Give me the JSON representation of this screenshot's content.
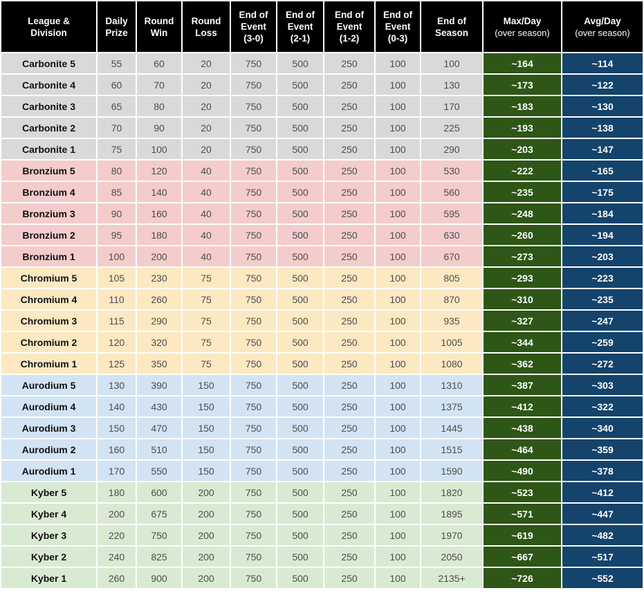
{
  "colors": {
    "header_bg": "#000000",
    "header_text": "#ffffff",
    "value_text": "#4d4d4d",
    "league_text": "#111111",
    "accent_text": "#ffffff",
    "max_day_bg": "#2e5616",
    "avg_day_bg": "#14436c",
    "grid": "#ffffff",
    "groups": {
      "Carbonite": "#d9d9d9",
      "Bronzium": "#f4cccc",
      "Chromium": "#fce9c2",
      "Aurodium": "#d2e3f3",
      "Kyber": "#d9ead3"
    }
  },
  "chart_data": {
    "type": "table",
    "columns": [
      {
        "label": "League & Division",
        "lines": [
          "League &",
          "Division"
        ]
      },
      {
        "label": "Daily Prize",
        "lines": [
          "Daily",
          "Prize"
        ]
      },
      {
        "label": "Round Win",
        "lines": [
          "Round",
          "Win"
        ]
      },
      {
        "label": "Round Loss",
        "lines": [
          "Round",
          "Loss"
        ]
      },
      {
        "label": "End of Event (3-0)",
        "lines": [
          "End of",
          "Event",
          "(3-0)"
        ]
      },
      {
        "label": "End of Event (2-1)",
        "lines": [
          "End of",
          "Event",
          "(2-1)"
        ]
      },
      {
        "label": "End of Event (1-2)",
        "lines": [
          "End of",
          "Event",
          "(1-2)"
        ]
      },
      {
        "label": "End of Event (0-3)",
        "lines": [
          "End of",
          "Event",
          "(0-3)"
        ]
      },
      {
        "label": "End of Season",
        "lines": [
          "End of",
          "Season"
        ]
      },
      {
        "label": "Max/Day (over season)",
        "lines": [
          "Max/Day"
        ],
        "sub": "(over season)"
      },
      {
        "label": "Avg/Day (over season)",
        "lines": [
          "Avg/Day"
        ],
        "sub": "(over season)"
      }
    ],
    "row_groups": [
      {
        "name": "Carbonite",
        "rows": [
          {
            "league": "Carbonite 5",
            "cells": [
              "55",
              "60",
              "20",
              "750",
              "500",
              "250",
              "100",
              "100"
            ],
            "max": "~164",
            "avg": "~114"
          },
          {
            "league": "Carbonite 4",
            "cells": [
              "60",
              "70",
              "20",
              "750",
              "500",
              "250",
              "100",
              "130"
            ],
            "max": "~173",
            "avg": "~122"
          },
          {
            "league": "Carbonite 3",
            "cells": [
              "65",
              "80",
              "20",
              "750",
              "500",
              "250",
              "100",
              "170"
            ],
            "max": "~183",
            "avg": "~130"
          },
          {
            "league": "Carbonite 2",
            "cells": [
              "70",
              "90",
              "20",
              "750",
              "500",
              "250",
              "100",
              "225"
            ],
            "max": "~193",
            "avg": "~138"
          },
          {
            "league": "Carbonite 1",
            "cells": [
              "75",
              "100",
              "20",
              "750",
              "500",
              "250",
              "100",
              "290"
            ],
            "max": "~203",
            "avg": "~147"
          }
        ]
      },
      {
        "name": "Bronzium",
        "rows": [
          {
            "league": "Bronzium 5",
            "cells": [
              "80",
              "120",
              "40",
              "750",
              "500",
              "250",
              "100",
              "530"
            ],
            "max": "~222",
            "avg": "~165"
          },
          {
            "league": "Bronzium 4",
            "cells": [
              "85",
              "140",
              "40",
              "750",
              "500",
              "250",
              "100",
              "560"
            ],
            "max": "~235",
            "avg": "~175"
          },
          {
            "league": "Bronzium 3",
            "cells": [
              "90",
              "160",
              "40",
              "750",
              "500",
              "250",
              "100",
              "595"
            ],
            "max": "~248",
            "avg": "~184"
          },
          {
            "league": "Bronzium 2",
            "cells": [
              "95",
              "180",
              "40",
              "750",
              "500",
              "250",
              "100",
              "630"
            ],
            "max": "~260",
            "avg": "~194"
          },
          {
            "league": "Bronzium 1",
            "cells": [
              "100",
              "200",
              "40",
              "750",
              "500",
              "250",
              "100",
              "670"
            ],
            "max": "~273",
            "avg": "~203"
          }
        ]
      },
      {
        "name": "Chromium",
        "rows": [
          {
            "league": "Chromium 5",
            "cells": [
              "105",
              "230",
              "75",
              "750",
              "500",
              "250",
              "100",
              "805"
            ],
            "max": "~293",
            "avg": "~223"
          },
          {
            "league": "Chromium 4",
            "cells": [
              "110",
              "260",
              "75",
              "750",
              "500",
              "250",
              "100",
              "870"
            ],
            "max": "~310",
            "avg": "~235"
          },
          {
            "league": "Chromium 3",
            "cells": [
              "115",
              "290",
              "75",
              "750",
              "500",
              "250",
              "100",
              "935"
            ],
            "max": "~327",
            "avg": "~247"
          },
          {
            "league": "Chromium 2",
            "cells": [
              "120",
              "320",
              "75",
              "750",
              "500",
              "250",
              "100",
              "1005"
            ],
            "max": "~344",
            "avg": "~259"
          },
          {
            "league": "Chromium 1",
            "cells": [
              "125",
              "350",
              "75",
              "750",
              "500",
              "250",
              "100",
              "1080"
            ],
            "max": "~362",
            "avg": "~272"
          }
        ]
      },
      {
        "name": "Aurodium",
        "rows": [
          {
            "league": "Aurodium 5",
            "cells": [
              "130",
              "390",
              "150",
              "750",
              "500",
              "250",
              "100",
              "1310"
            ],
            "max": "~387",
            "avg": "~303"
          },
          {
            "league": "Aurodium 4",
            "cells": [
              "140",
              "430",
              "150",
              "750",
              "500",
              "250",
              "100",
              "1375"
            ],
            "max": "~412",
            "avg": "~322"
          },
          {
            "league": "Aurodium 3",
            "cells": [
              "150",
              "470",
              "150",
              "750",
              "500",
              "250",
              "100",
              "1445"
            ],
            "max": "~438",
            "avg": "~340"
          },
          {
            "league": "Aurodium 2",
            "cells": [
              "160",
              "510",
              "150",
              "750",
              "500",
              "250",
              "100",
              "1515"
            ],
            "max": "~464",
            "avg": "~359"
          },
          {
            "league": "Aurodium 1",
            "cells": [
              "170",
              "550",
              "150",
              "750",
              "500",
              "250",
              "100",
              "1590"
            ],
            "max": "~490",
            "avg": "~378"
          }
        ]
      },
      {
        "name": "Kyber",
        "rows": [
          {
            "league": "Kyber 5",
            "cells": [
              "180",
              "600",
              "200",
              "750",
              "500",
              "250",
              "100",
              "1820"
            ],
            "max": "~523",
            "avg": "~412"
          },
          {
            "league": "Kyber 4",
            "cells": [
              "200",
              "675",
              "200",
              "750",
              "500",
              "250",
              "100",
              "1895"
            ],
            "max": "~571",
            "avg": "~447"
          },
          {
            "league": "Kyber 3",
            "cells": [
              "220",
              "750",
              "200",
              "750",
              "500",
              "250",
              "100",
              "1970"
            ],
            "max": "~619",
            "avg": "~482"
          },
          {
            "league": "Kyber 2",
            "cells": [
              "240",
              "825",
              "200",
              "750",
              "500",
              "250",
              "100",
              "2050"
            ],
            "max": "~667",
            "avg": "~517"
          },
          {
            "league": "Kyber 1",
            "cells": [
              "260",
              "900",
              "200",
              "750",
              "500",
              "250",
              "100",
              "2135+"
            ],
            "max": "~726",
            "avg": "~552"
          }
        ]
      }
    ]
  }
}
